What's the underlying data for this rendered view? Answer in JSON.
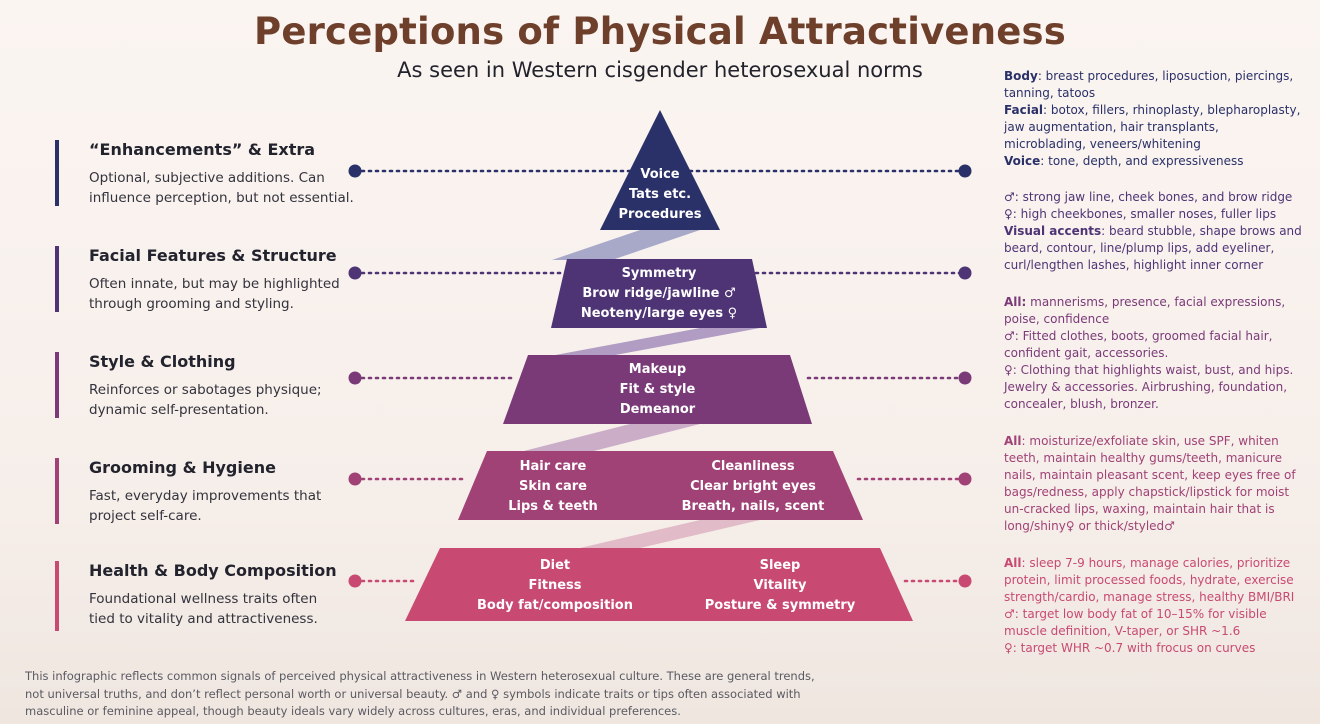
{
  "title": "Perceptions of Physical Attractiveness",
  "subtitle": "As seen in Western cisgender heterosexual norms",
  "colors": {
    "title": "#6e3f2a",
    "tier1": "#2a3068",
    "tier2": "#4e3475",
    "tier3": "#7a3a78",
    "tier4": "#a04276",
    "tier5": "#c84a72",
    "ribbon": "#b7a9c9"
  },
  "tiers": [
    {
      "heading": "“Enhancements” & Extra",
      "description": "Optional, subjective additions. Can influence perception, but not essential.",
      "pyramid_lines": [
        "Voice",
        "Tats etc.",
        "Procedures"
      ]
    },
    {
      "heading": "Facial Features & Structure",
      "description": "Often innate, but may be highlighted through grooming and styling.",
      "pyramid_lines": [
        "Symmetry",
        "Brow ridge/jawline ♂",
        "Neoteny/large eyes ♀"
      ]
    },
    {
      "heading": "Style & Clothing",
      "description": "Reinforces or sabotages physique; dynamic self-presentation.",
      "pyramid_lines": [
        "Makeup",
        "Fit & style",
        "Demeanor"
      ]
    },
    {
      "heading": "Grooming & Hygiene",
      "description": "Fast, everyday improvements that project self-care.",
      "pyramid_left": [
        "Hair care",
        "Skin care",
        "Lips & teeth"
      ],
      "pyramid_right": [
        "Cleanliness",
        "Clear bright eyes",
        "Breath, nails, scent"
      ]
    },
    {
      "heading": "Health & Body Composition",
      "description": "Foundational wellness traits often tied to vitality and attractiveness.",
      "pyramid_left": [
        "Diet",
        "Fitness",
        "Body fat/composition"
      ],
      "pyramid_right": [
        "Sleep",
        "Vitality",
        "Posture & symmetry"
      ]
    }
  ],
  "details": {
    "t1": {
      "body_label": "Body",
      "body_text": ": breast procedures, liposuction, piercings, tanning, tatoos",
      "facial_label": "Facial",
      "facial_text": ": botox, fillers, rhinoplasty, blepharoplasty, jaw augmentation, hair transplants, microblading, veneers/whitening",
      "voice_label": "Voice",
      "voice_text": ": tone, depth, and expressiveness"
    },
    "t2": {
      "male": "♂: strong jaw line, cheek bones, and brow ridge",
      "female": "♀: high cheekbones, smaller noses, fuller lips",
      "accents_label": "Visual accents",
      "accents_text": ": beard stubble, shape brows and beard, contour, line/plump lips, add eyeliner, curl/lengthen lashes, highlight inner corner"
    },
    "t3": {
      "all_label": "All:",
      "all_text": " mannerisms, presence, facial expressions, poise, confidence",
      "male": "♂: Fitted clothes, boots, groomed facial hair, confident gait, accessories.",
      "female": "♀: Clothing that highlights waist, bust, and hips. Jewelry & accessories. Airbrushing, foundation, concealer, blush, bronzer."
    },
    "t4": {
      "all_label": "All",
      "all_text": ": moisturize/exfoliate skin, use SPF, whiten teeth, maintain healthy gums/teeth, manicure nails, maintain pleasant scent, keep eyes free of bags/redness, apply chapstick/lipstick for moist un-cracked lips, waxing, maintain hair that  is long/shiny♀ or thick/styled♂"
    },
    "t5": {
      "all_label": "All",
      "all_text": ": sleep 7-9 hours, manage calories, prioritize protein, limit processed foods, hydrate, exercise strength/cardio, manage stress, healthy BMI/BRI",
      "male": "♂: target low body fat of 10–15% for visible muscle definition, V-taper, or SHR ~1.6",
      "female": "♀: target WHR ~0.7 with frocus on curves"
    }
  },
  "footer": "This infographic reflects common signals of perceived physical attractiveness in Western heterosexual culture. These are general trends, not universal truths, and don’t reflect personal worth or universal beauty. ♂ and ♀ symbols indicate traits or tips often associated with masculine or feminine appeal, though beauty ideals vary widely across cultures, eras, and individual preferences."
}
